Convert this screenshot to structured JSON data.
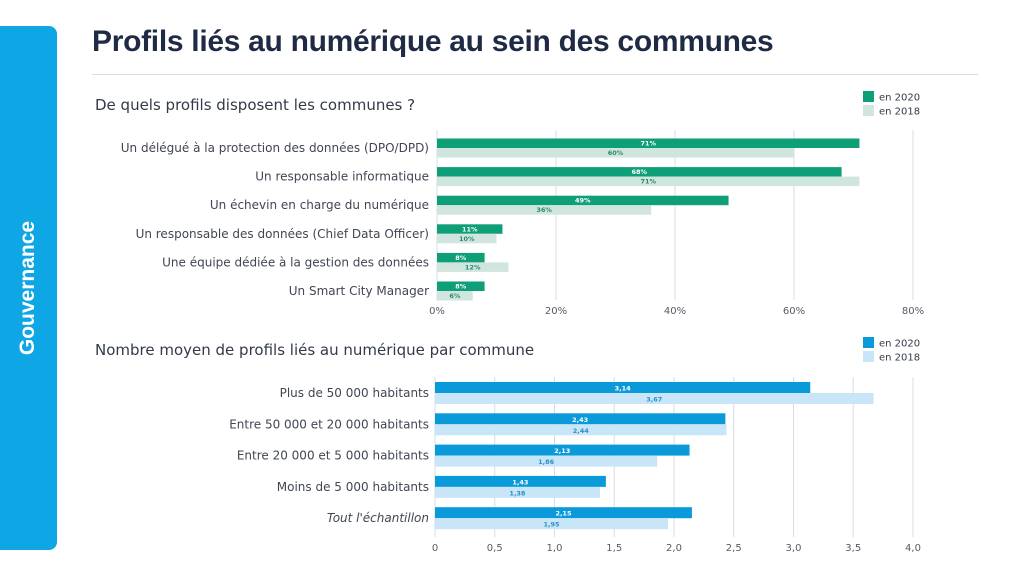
{
  "sidebar": {
    "label": "Gouvernance"
  },
  "page": {
    "title": "Profils liés au numérique au sein des communes"
  },
  "chart_data": [
    {
      "type": "bar",
      "orientation": "horizontal",
      "title": "De quels profils disposent les communes ?",
      "categories": [
        "Un délégué à la protection des données (DPO/DPD)",
        "Un responsable informatique",
        "Un échevin en charge du numérique",
        "Un responsable des données (Chief Data Officer)",
        "Une équipe dédiée à la gestion des données",
        "Un Smart City Manager"
      ],
      "series": [
        {
          "name": "en 2020",
          "color": "#0e9e78",
          "values": [
            71,
            68,
            49,
            11,
            8,
            8
          ],
          "labels": [
            "71%",
            "68%",
            "49%",
            "11%",
            "8%",
            "8%"
          ]
        },
        {
          "name": "en 2018",
          "color": "#cfe5de",
          "values": [
            60,
            71,
            36,
            10,
            12,
            6
          ],
          "labels": [
            "60%",
            "71%",
            "36%",
            "10%",
            "12%",
            "6%"
          ]
        }
      ],
      "xlim": [
        0,
        80
      ],
      "ticks": [
        0,
        20,
        40,
        60,
        80
      ],
      "tick_labels": [
        "0%",
        "20%",
        "40%",
        "60%",
        "80%"
      ],
      "grid": true,
      "legend_position": "top-right"
    },
    {
      "type": "bar",
      "orientation": "horizontal",
      "title": "Nombre moyen de profils liés au numérique par commune",
      "categories": [
        "Plus de 50 000 habitants",
        "Entre 50 000 et 20 000 habitants",
        "Entre 20 000 et 5 000 habitants",
        "Moins de 5 000 habitants",
        "Tout l'échantillon"
      ],
      "italic_categories": [
        4
      ],
      "series": [
        {
          "name": "en 2020",
          "color": "#0a9ad9",
          "values": [
            3.14,
            2.43,
            2.13,
            1.43,
            2.15
          ],
          "labels": [
            "3,14",
            "2,43",
            "2,13",
            "1,43",
            "2,15"
          ]
        },
        {
          "name": "en 2018",
          "color": "#c8e6f8",
          "values": [
            3.67,
            2.44,
            1.86,
            1.38,
            1.95
          ],
          "labels": [
            "3,67",
            "2,44",
            "1,86",
            "1,38",
            "1,95"
          ]
        }
      ],
      "xlim": [
        0,
        4
      ],
      "ticks": [
        0,
        0.5,
        1,
        1.5,
        2,
        2.5,
        3,
        3.5,
        4
      ],
      "tick_labels": [
        "0",
        "0,5",
        "1,0",
        "1,5",
        "2,0",
        "2,5",
        "3,0",
        "3,5",
        "4,0"
      ],
      "grid": true,
      "legend_position": "top-right"
    }
  ]
}
